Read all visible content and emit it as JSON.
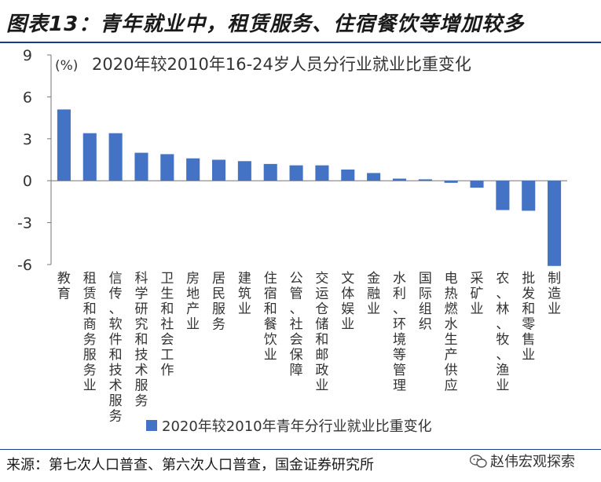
{
  "header": {
    "title": "图表13：青年就业中，租赁服务、住宿餐饮等增加较多"
  },
  "footer": {
    "source": "来源：第七次人口普查、第六次人口普查，国金证券研究所",
    "brand": "赵伟宏观探索",
    "brand_icon": "wechat-icon"
  },
  "chart_data": {
    "type": "bar",
    "title": "2020年较2010年16-24岁人员分行业就业比重变化",
    "ylabel": "(%)",
    "xlabel": "",
    "ylim": [
      -6,
      9
    ],
    "yticks": [
      9,
      6,
      3,
      0,
      -3,
      -6
    ],
    "grid": false,
    "legend_position": "bottom-center",
    "bar_color": "#4472c4",
    "categories": [
      "教育",
      "租赁和商务服务业",
      "信传、软件和技术服务",
      "科学研究和技术服务",
      "卫生和社会工作",
      "房地产业",
      "居民服务",
      "建筑业",
      "住宿和餐饮业",
      "公管、社会保障",
      "交运仓储和邮政业",
      "文体娱业",
      "金融业",
      "水利、环境等管理",
      "国际组织",
      "电热燃水生产供应",
      "采矿业",
      "农、林、牧、渔业",
      "批发和零售业",
      "制造业"
    ],
    "series": [
      {
        "name": "2020年较2010年青年分行业就业比重变化",
        "values": [
          5.1,
          3.4,
          3.4,
          2.0,
          1.9,
          1.6,
          1.5,
          1.4,
          1.2,
          1.1,
          1.1,
          0.8,
          0.55,
          0.15,
          0.1,
          -0.15,
          -0.5,
          -2.1,
          -2.15,
          -6.1
        ]
      }
    ]
  }
}
